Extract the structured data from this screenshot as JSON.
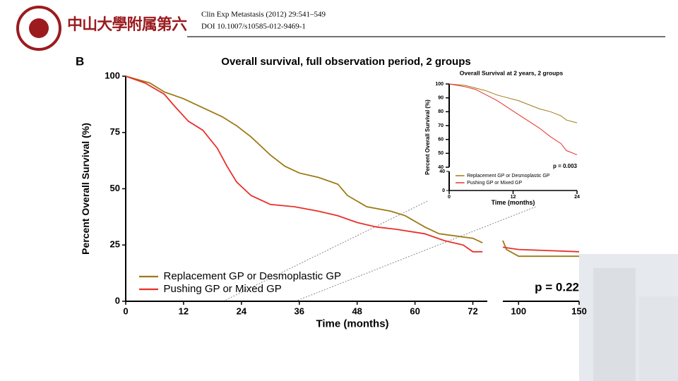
{
  "header": {
    "logo_text": "中山大學附属第六",
    "citation": "Clin Exp Metastasis (2012) 29:541–549",
    "doi": "DOI 10.1007/s10585-012-9469-1",
    "panel_label": "B"
  },
  "chart_data": [
    {
      "type": "line",
      "title": "Overall survival, full observation period, 2 groups",
      "x_label": "Time (months)",
      "y_label": "Percent Overall Survival (%)",
      "xlim": [
        0,
        150
      ],
      "x_break": [
        75,
        87
      ],
      "xticks": [
        0,
        12,
        24,
        36,
        48,
        60,
        72,
        100,
        150
      ],
      "ylim": [
        0,
        100
      ],
      "yticks": [
        0,
        25,
        50,
        75,
        100
      ],
      "annotation": "p = 0.22",
      "legend": "lower left",
      "series": [
        {
          "name": "Replacement GP or Desmoplastic GP",
          "color": "#9c7a14",
          "x": [
            0,
            5,
            8,
            12,
            16,
            20,
            23,
            26,
            30,
            33,
            36,
            40,
            44,
            46,
            50,
            55,
            58,
            62,
            65,
            72,
            74,
            80,
            87,
            90,
            100,
            150
          ],
          "values": [
            100,
            97,
            93,
            90,
            86,
            82,
            78,
            73,
            65,
            60,
            57,
            55,
            52,
            47,
            42,
            40,
            38,
            33,
            30,
            28,
            26,
            null,
            27,
            23,
            20,
            20
          ]
        },
        {
          "name": "Pushing GP or Mixed GP",
          "color": "#e8302a",
          "x": [
            0,
            4,
            8,
            10,
            13,
            16,
            19,
            21,
            23,
            26,
            30,
            35,
            40,
            44,
            48,
            52,
            56,
            62,
            66,
            70,
            72,
            74,
            80,
            87,
            100,
            150
          ],
          "values": [
            100,
            97,
            92,
            87,
            80,
            76,
            68,
            60,
            53,
            47,
            43,
            42,
            40,
            38,
            35,
            33,
            32,
            30,
            27,
            25,
            22,
            22,
            null,
            24,
            23,
            22
          ]
        }
      ]
    },
    {
      "type": "line",
      "title": "Overall Survival at 2 years, 2 groups",
      "x_label": "Time (months)",
      "y_label": "Percent Overall Survival (%)",
      "xlim": [
        0,
        24
      ],
      "xticks": [
        0,
        12,
        24
      ],
      "ylim": [
        40,
        100
      ],
      "yticks": [
        40,
        50,
        60,
        70,
        80,
        90,
        100
      ],
      "y_lower_ticks": [
        0,
        40
      ],
      "annotation": "p = 0.003",
      "legend": "lower left",
      "series": [
        {
          "name": "Replacement GP or Desmoplastic GP",
          "color": "#9c7a14",
          "x": [
            0,
            3,
            5,
            7,
            9,
            11,
            13,
            15,
            17,
            19,
            21,
            22,
            24
          ],
          "values": [
            100,
            99,
            97,
            95,
            92,
            90,
            88,
            85,
            82,
            80,
            77,
            74,
            72
          ]
        },
        {
          "name": "Pushing GP or Mixed GP",
          "color": "#e8302a",
          "x": [
            0,
            3,
            5,
            7,
            9,
            11,
            13,
            15,
            17,
            19,
            21,
            22,
            24
          ],
          "values": [
            100,
            98,
            96,
            92,
            88,
            83,
            78,
            73,
            68,
            62,
            57,
            52,
            49
          ]
        }
      ]
    }
  ]
}
